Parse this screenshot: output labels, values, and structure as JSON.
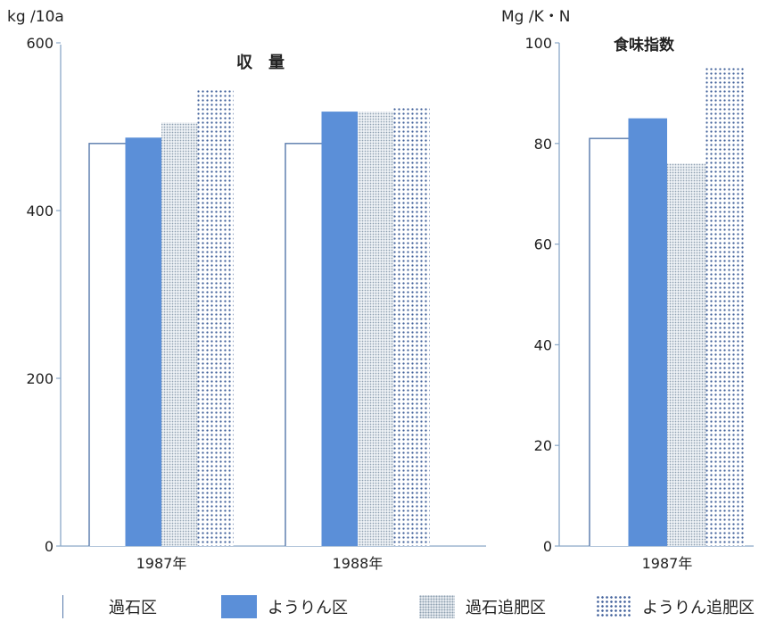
{
  "chart_data": [
    {
      "type": "bar",
      "title": "収　量",
      "ylabel": "kg /10a",
      "ylim": [
        0,
        600
      ],
      "yticks": [
        0,
        200,
        400,
        600
      ],
      "categories": [
        "1987年",
        "1988年"
      ],
      "series": [
        {
          "name": "過石区",
          "values": [
            480,
            480
          ]
        },
        {
          "name": "ようりん区",
          "values": [
            487,
            518
          ]
        },
        {
          "name": "過石追肥区",
          "values": [
            505,
            518
          ]
        },
        {
          "name": "ようりん追肥区",
          "values": [
            545,
            525
          ]
        }
      ]
    },
    {
      "type": "bar",
      "title": "食味指数",
      "ylabel": "Mg /K・N",
      "ylim": [
        0,
        100
      ],
      "yticks": [
        0,
        20,
        40,
        60,
        80,
        100
      ],
      "categories": [
        "1987年"
      ],
      "series": [
        {
          "name": "過石区",
          "values": [
            81
          ]
        },
        {
          "name": "ようりん区",
          "values": [
            85
          ]
        },
        {
          "name": "過石追肥区",
          "values": [
            76
          ]
        },
        {
          "name": "ようりん追肥区",
          "values": [
            95
          ]
        }
      ]
    }
  ],
  "legend": {
    "placement": "bottom",
    "items": [
      {
        "label": "過石区",
        "pattern": "plain"
      },
      {
        "label": "ようりん区",
        "pattern": "solid"
      },
      {
        "label": "過石追肥区",
        "pattern": "fine-dots"
      },
      {
        "label": "ようりん追肥区",
        "pattern": "coarse-dots"
      }
    ]
  },
  "colors": {
    "solid": "#5b8fd8",
    "fine_dots": "#8fa0b0",
    "coarse_dots": "#3f5f9a",
    "axis": "#8aa8c8",
    "outline": "#5577aa"
  }
}
